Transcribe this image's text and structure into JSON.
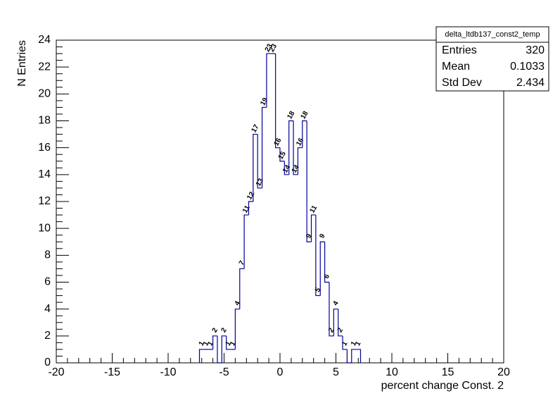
{
  "chart_data": {
    "type": "histogram",
    "x_label": "percent change Const. 2",
    "y_label": "N Entries",
    "bins": [
      -7.2,
      -6.8,
      -6.4,
      -6.0,
      -5.6,
      -5.2,
      -4.8,
      -4.4,
      -4.0,
      -3.6,
      -3.2,
      -2.8,
      -2.4,
      -2.0,
      -1.6,
      -1.2,
      -0.8,
      -0.4,
      0,
      0.4,
      0.8,
      1.2,
      1.6,
      2.0,
      2.4,
      2.8,
      3.2,
      3.6,
      4.0,
      4.4,
      4.8,
      5.2,
      5.6,
      6.0,
      6.4,
      6.8,
      7.2
    ],
    "values": [
      1,
      1,
      1,
      2,
      0,
      2,
      1,
      1,
      4,
      7,
      11,
      12,
      17,
      13,
      19,
      23,
      23,
      16,
      15,
      14,
      18,
      14,
      16,
      18,
      9,
      11,
      5,
      9,
      6,
      2,
      4,
      2,
      1,
      0,
      1,
      1
    ],
    "color": "#000099",
    "xlim": [
      -20,
      20
    ],
    "xticks": [
      -20,
      -15,
      -10,
      -5,
      0,
      5,
      10,
      15,
      20
    ],
    "ylim": [
      0,
      24
    ],
    "yticks": [
      0,
      2,
      4,
      6,
      8,
      10,
      12,
      14,
      16,
      18,
      20,
      22,
      24
    ],
    "stats": {
      "name": "delta_ltdb137_const2_temp",
      "rows": [
        {
          "label": "Entries",
          "value": 320
        },
        {
          "label": "Mean",
          "value": 0.1033
        },
        {
          "label": "Std Dev",
          "value": 2.434
        }
      ]
    }
  }
}
